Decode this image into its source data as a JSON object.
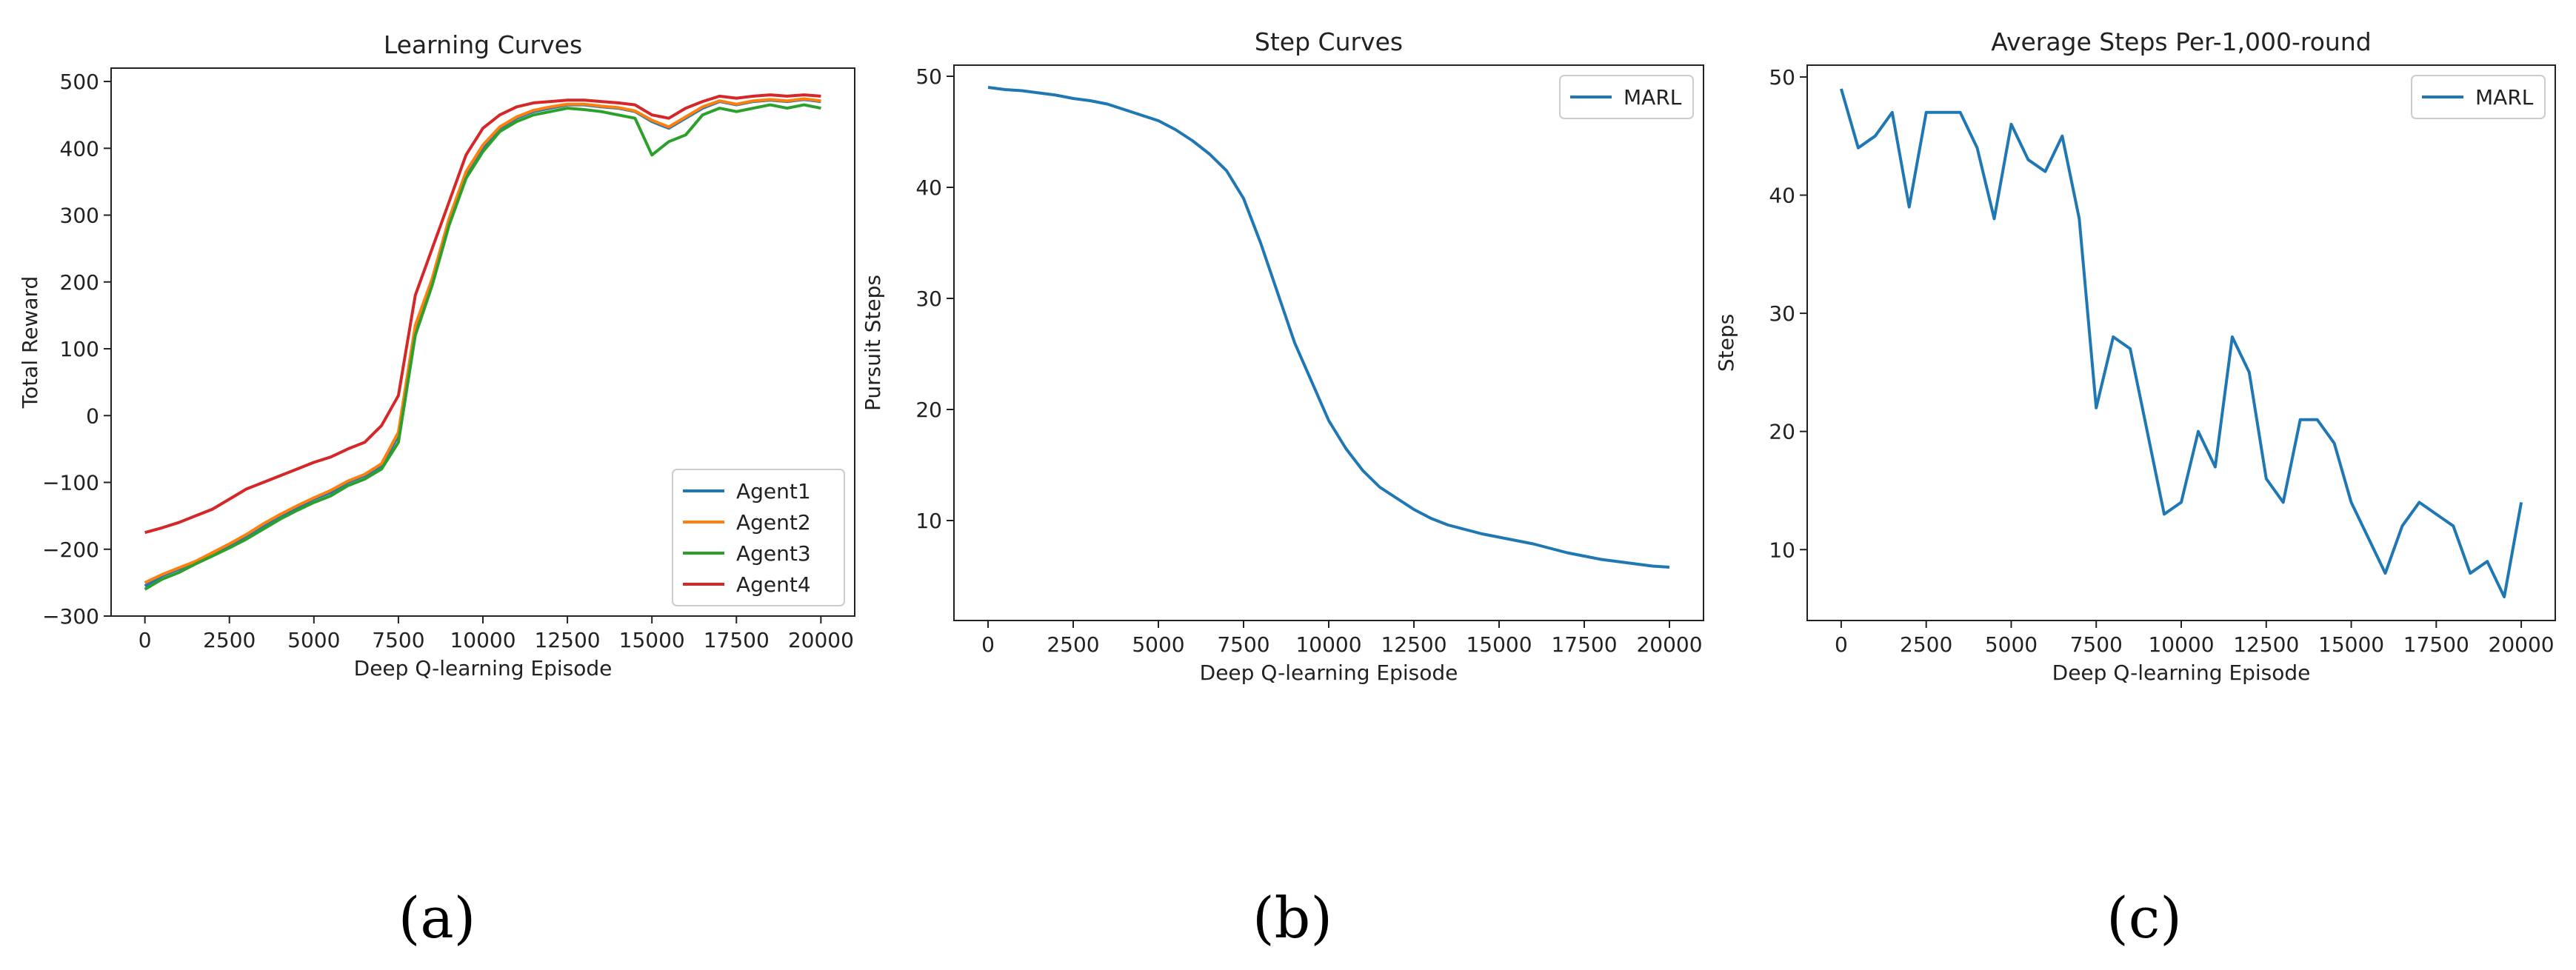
{
  "figure": {
    "panel_labels": [
      "(a)",
      "(b)",
      "(c)"
    ]
  },
  "chart_data": [
    {
      "type": "line",
      "title": "Learning Curves",
      "xlabel": "Deep Q-learning Episode",
      "ylabel": "Total Reward",
      "xlim": [
        -1000,
        21000
      ],
      "ylim": [
        -300,
        520
      ],
      "xticks": [
        0,
        2500,
        5000,
        7500,
        10000,
        12500,
        15000,
        17500,
        20000
      ],
      "yticks": [
        -300,
        -200,
        -100,
        0,
        100,
        200,
        300,
        400,
        500
      ],
      "grid": false,
      "legend_position": "lower-right",
      "series_colors": [
        "#1f77b4",
        "#ff7f0e",
        "#2ca02c",
        "#d62728"
      ],
      "series": [
        {
          "name": "Agent1",
          "x": [
            0,
            500,
            1000,
            1500,
            2000,
            2500,
            3000,
            3500,
            4000,
            4500,
            5000,
            5500,
            6000,
            6500,
            7000,
            7500,
            8000,
            8500,
            9000,
            9500,
            10000,
            10500,
            11000,
            11500,
            12000,
            12500,
            13000,
            13500,
            14000,
            14500,
            15000,
            15500,
            16000,
            16500,
            17000,
            17500,
            18000,
            18500,
            19000,
            19500,
            20000
          ],
          "y": [
            -255,
            -240,
            -230,
            -220,
            -205,
            -195,
            -180,
            -165,
            -150,
            -138,
            -125,
            -115,
            -100,
            -90,
            -75,
            -30,
            130,
            200,
            290,
            360,
            400,
            430,
            445,
            455,
            460,
            465,
            465,
            462,
            460,
            455,
            440,
            430,
            445,
            460,
            470,
            465,
            470,
            472,
            470,
            473,
            470
          ]
        },
        {
          "name": "Agent2",
          "x": [
            0,
            500,
            1000,
            1500,
            2000,
            2500,
            3000,
            3500,
            4000,
            4500,
            5000,
            5500,
            6000,
            6500,
            7000,
            7500,
            8000,
            8500,
            9000,
            9500,
            10000,
            10500,
            11000,
            11500,
            12000,
            12500,
            13000,
            13500,
            14000,
            14500,
            15000,
            15500,
            16000,
            16500,
            17000,
            17500,
            18000,
            18500,
            19000,
            19500,
            20000
          ],
          "y": [
            -250,
            -238,
            -228,
            -218,
            -205,
            -192,
            -178,
            -162,
            -148,
            -135,
            -123,
            -112,
            -98,
            -88,
            -72,
            -25,
            135,
            205,
            295,
            365,
            405,
            432,
            447,
            457,
            462,
            466,
            466,
            463,
            461,
            456,
            442,
            432,
            447,
            462,
            471,
            466,
            471,
            473,
            471,
            474,
            471
          ]
        },
        {
          "name": "Agent3",
          "x": [
            0,
            500,
            1000,
            1500,
            2000,
            2500,
            3000,
            3500,
            4000,
            4500,
            5000,
            5500,
            6000,
            6500,
            7000,
            7500,
            8000,
            8500,
            9000,
            9500,
            10000,
            10500,
            11000,
            11500,
            12000,
            12500,
            13000,
            13500,
            14000,
            14500,
            15000,
            15500,
            16000,
            16500,
            17000,
            17500,
            18000,
            18500,
            19000,
            19500,
            20000
          ],
          "y": [
            -260,
            -245,
            -235,
            -222,
            -210,
            -198,
            -185,
            -170,
            -155,
            -142,
            -130,
            -120,
            -105,
            -95,
            -80,
            -40,
            120,
            195,
            285,
            355,
            395,
            425,
            440,
            450,
            455,
            460,
            458,
            455,
            450,
            445,
            390,
            410,
            420,
            450,
            460,
            455,
            460,
            465,
            460,
            465,
            460
          ]
        },
        {
          "name": "Agent4",
          "x": [
            0,
            500,
            1000,
            1500,
            2000,
            2500,
            3000,
            3500,
            4000,
            4500,
            5000,
            5500,
            6000,
            6500,
            7000,
            7500,
            8000,
            8500,
            9000,
            9500,
            10000,
            10500,
            11000,
            11500,
            12000,
            12500,
            13000,
            13500,
            14000,
            14500,
            15000,
            15500,
            16000,
            16500,
            17000,
            17500,
            18000,
            18500,
            19000,
            19500,
            20000
          ],
          "y": [
            -175,
            -168,
            -160,
            -150,
            -140,
            -125,
            -110,
            -100,
            -90,
            -80,
            -70,
            -62,
            -50,
            -40,
            -15,
            30,
            180,
            250,
            320,
            390,
            430,
            450,
            462,
            468,
            470,
            472,
            472,
            470,
            468,
            465,
            450,
            445,
            460,
            470,
            478,
            475,
            478,
            480,
            478,
            480,
            478
          ]
        }
      ]
    },
    {
      "type": "line",
      "title": "Step Curves",
      "xlabel": "Deep Q-learning Episode",
      "ylabel": "Pursuit Steps",
      "xlim": [
        -1000,
        21000
      ],
      "ylim": [
        1,
        51
      ],
      "xticks": [
        0,
        2500,
        5000,
        7500,
        10000,
        12500,
        15000,
        17500,
        20000
      ],
      "yticks": [
        10,
        20,
        30,
        40,
        50
      ],
      "grid": false,
      "legend_position": "upper-right",
      "series_colors": [
        "#1f77b4"
      ],
      "series": [
        {
          "name": "MARL",
          "x": [
            0,
            500,
            1000,
            1500,
            2000,
            2500,
            3000,
            3500,
            4000,
            4500,
            5000,
            5500,
            6000,
            6500,
            7000,
            7500,
            8000,
            8500,
            9000,
            9500,
            10000,
            10500,
            11000,
            11500,
            12000,
            12500,
            13000,
            13500,
            14000,
            14500,
            15000,
            15500,
            16000,
            16500,
            17000,
            17500,
            18000,
            18500,
            19000,
            19500,
            20000
          ],
          "y": [
            49,
            48.8,
            48.7,
            48.5,
            48.3,
            48,
            47.8,
            47.5,
            47,
            46.5,
            46,
            45.2,
            44.2,
            43,
            41.5,
            39,
            35,
            30.5,
            26,
            22.5,
            19,
            16.5,
            14.5,
            13,
            12,
            11,
            10.2,
            9.6,
            9.2,
            8.8,
            8.5,
            8.2,
            7.9,
            7.5,
            7.1,
            6.8,
            6.5,
            6.3,
            6.1,
            5.9,
            5.8
          ]
        }
      ]
    },
    {
      "type": "line",
      "title": "Average Steps Per-1,000-round",
      "xlabel": "Deep Q-learning Episode",
      "ylabel": "Steps",
      "xlim": [
        -1000,
        21000
      ],
      "ylim": [
        4,
        51
      ],
      "xticks": [
        0,
        2500,
        5000,
        7500,
        10000,
        12500,
        15000,
        17500,
        20000
      ],
      "yticks": [
        10,
        20,
        30,
        40,
        50
      ],
      "grid": false,
      "legend_position": "upper-right",
      "series_colors": [
        "#1f77b4"
      ],
      "series": [
        {
          "name": "MARL",
          "x": [
            0,
            500,
            1000,
            1500,
            2000,
            2500,
            3000,
            3500,
            4000,
            4500,
            5000,
            5500,
            6000,
            6500,
            7000,
            7500,
            8000,
            8500,
            9000,
            9500,
            10000,
            10500,
            11000,
            11500,
            12000,
            12500,
            13000,
            13500,
            14000,
            14500,
            15000,
            15500,
            16000,
            16500,
            17000,
            17500,
            18000,
            18500,
            19000,
            19500,
            20000
          ],
          "y": [
            49,
            44,
            45,
            47,
            39,
            47,
            47,
            47,
            44,
            38,
            46,
            43,
            42,
            45,
            38,
            22,
            28,
            27,
            20,
            13,
            14,
            20,
            17,
            28,
            25,
            16,
            14,
            21,
            21,
            19,
            14,
            11,
            8,
            12,
            14,
            13,
            12,
            8,
            9,
            6,
            14
          ]
        }
      ]
    }
  ]
}
